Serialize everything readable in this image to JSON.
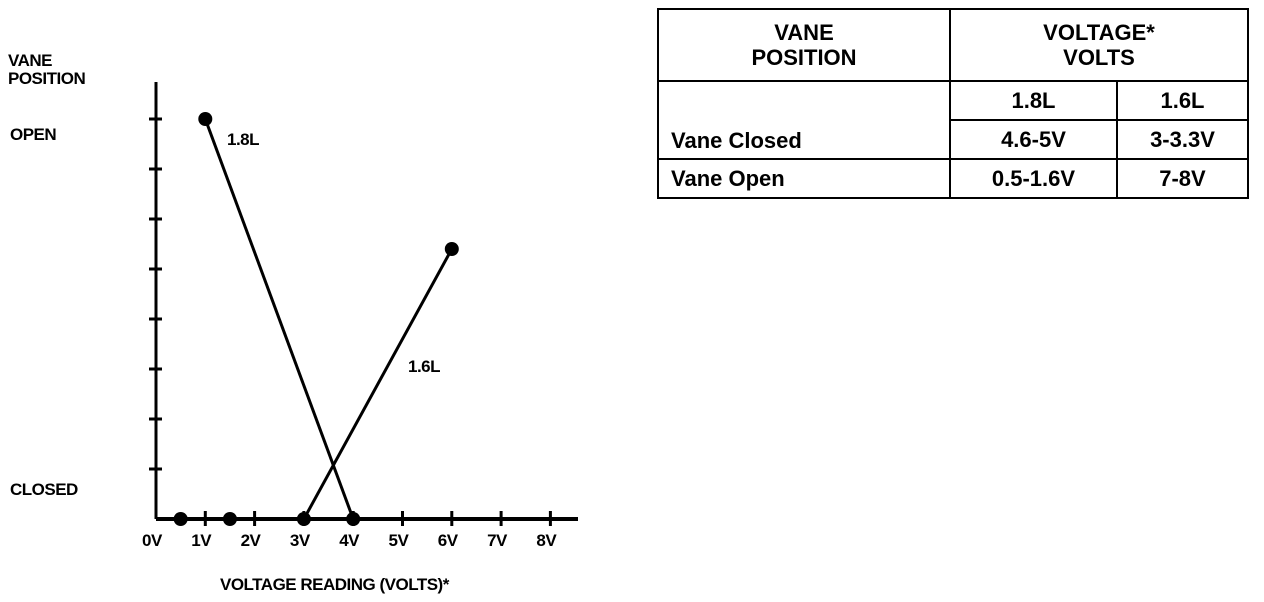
{
  "chart_data": {
    "type": "line",
    "ylabel": "VANE POSITION",
    "xlabel": "VOLTAGE READING (VOLTS)*",
    "y_tick_labels": {
      "top": "OPEN",
      "bottom": "CLOSED"
    },
    "x_ticks": [
      "0V",
      "1V",
      "2V",
      "3V",
      "4V",
      "5V",
      "6V",
      "7V",
      "8V"
    ],
    "xlim": [
      0,
      8.5
    ],
    "ylim": [
      0,
      8
    ],
    "y_ticks_count": 8,
    "series": [
      {
        "name": "1.8L",
        "points": [
          [
            1,
            8
          ],
          [
            4,
            0
          ]
        ]
      },
      {
        "name": "1.6L",
        "points": [
          [
            3,
            0
          ],
          [
            6,
            5.4
          ]
        ]
      }
    ],
    "extra_points_on_axis": [
      0.5,
      1.5
    ],
    "color": "#000000"
  },
  "table": {
    "header_left": [
      "VANE",
      "POSITION"
    ],
    "header_right": [
      "VOLTAGE*",
      "VOLTS"
    ],
    "sub_headers": [
      "1.8L",
      "1.6L"
    ],
    "rows": [
      {
        "label": "Vane Closed",
        "v18": "4.6-5V",
        "v16": "3-3.3V"
      },
      {
        "label": "Vane Open",
        "v18": "0.5-1.6V",
        "v16": "7-8V"
      }
    ]
  }
}
